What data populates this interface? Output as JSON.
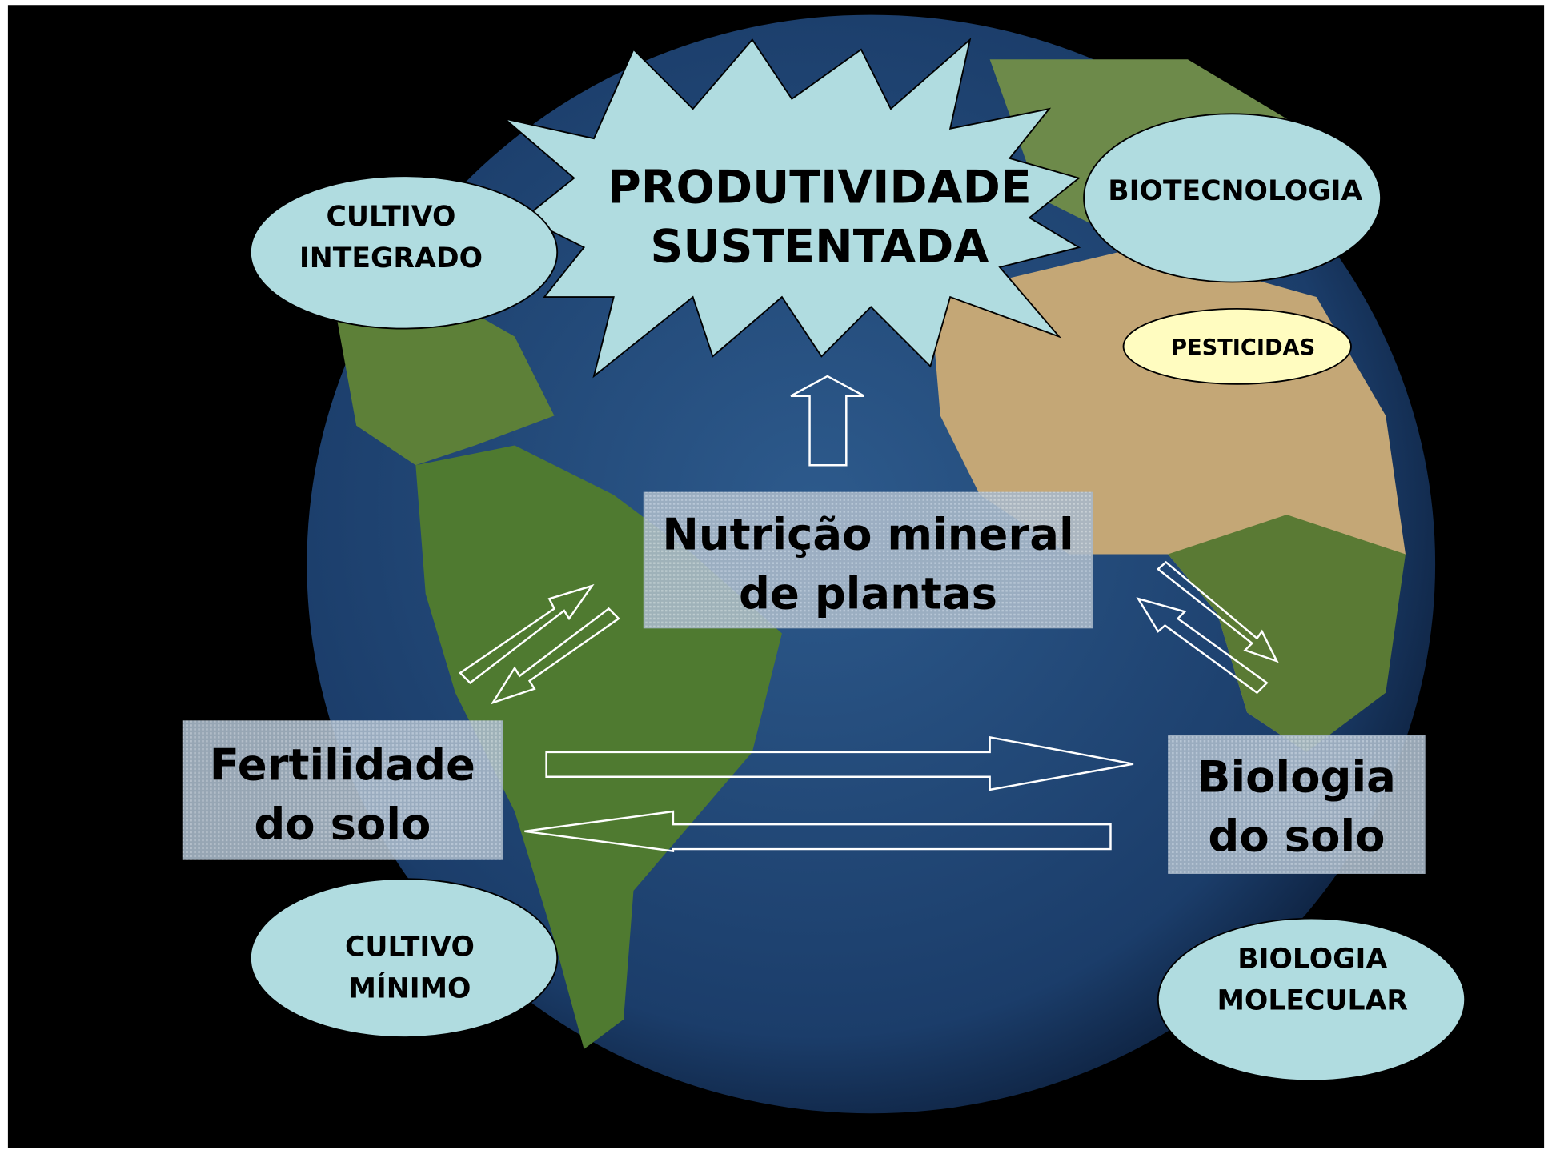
{
  "center": {
    "lines": [
      "PRODUTIVIDADE",
      "SUSTENTADA"
    ]
  },
  "boxes": [
    {
      "lines": [
        "Nutrição mineral",
        "de plantas"
      ]
    },
    {
      "lines": [
        "Fertilidade",
        "do solo"
      ]
    },
    {
      "lines": [
        "Biologia",
        "do solo"
      ]
    }
  ],
  "ellipses": [
    {
      "lines": [
        "CULTIVO",
        "INTEGRADO"
      ]
    },
    {
      "lines": [
        "BIOTECNOLOGIA"
      ]
    },
    {
      "lines": [
        "PESTICIDAS"
      ]
    },
    {
      "lines": [
        "CULTIVO",
        "MÍNIMO"
      ]
    },
    {
      "lines": [
        "BIOLOGIA",
        "MOLECULAR"
      ]
    }
  ]
}
